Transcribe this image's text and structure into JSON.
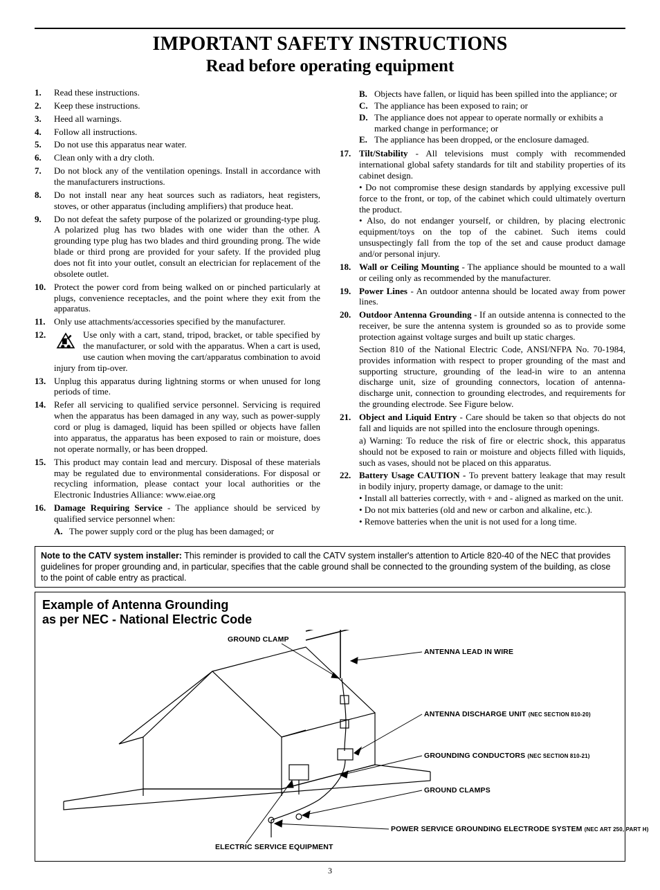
{
  "title_line1": "IMPORTANT SAFETY INSTRUCTIONS",
  "title_line2": "Read before operating equipment",
  "page_number": "3",
  "left_items": [
    {
      "t": "Read these instructions."
    },
    {
      "t": "Keep these instructions."
    },
    {
      "t": "Heed all warnings."
    },
    {
      "t": "Follow all instructions."
    },
    {
      "t": "Do not use this apparatus near water."
    },
    {
      "t": "Clean only with a dry cloth."
    },
    {
      "t": "Do not block any of the ventilation openings. Install in accordance with the manufacturers instructions."
    },
    {
      "t": "Do not install near any heat sources such as radiators, heat registers, stoves, or other apparatus (including amplifiers) that produce heat."
    },
    {
      "t": "Do not defeat the safety purpose of the polarized or grounding-type plug. A polarized plug has two blades with one wider than the other. A grounding type plug has two blades and third grounding prong. The wide blade or third prong are provided for your safety. If the provided plug does not fit into your outlet, consult an electrician for replacement of the obsolete outlet."
    },
    {
      "t": "Protect the power cord from being walked on or pinched particularly at plugs, convenience receptacles, and the point where they exit from the apparatus."
    },
    {
      "t": "Only use attachments/accessories specified by the manufacturer."
    },
    {
      "icon": true,
      "t": "Use only with a cart, stand, tripod, bracket, or table specified by the manufacturer, or sold with the apparatus. When a cart is used, use caution when moving the cart/apparatus combination to avoid injury from tip-over."
    },
    {
      "t": "Unplug this apparatus during lightning storms or when unused for long periods of time."
    },
    {
      "t": "Refer all servicing to qualified service personnel. Servicing is required when the apparatus has been damaged in any way, such as power-supply cord or plug is damaged, liquid has been spilled or objects have fallen into apparatus, the apparatus has been exposed to rain or moisture, does not operate normally, or has been dropped."
    },
    {
      "t": "This product may contain lead and mercury. Disposal of these materials may be regulated due to environmental considerations. For disposal or recycling information, please contact your local authorities or the Electronic Industries Alliance: www.eiae.org"
    },
    {
      "bold_lead": "Damage Requiring Service",
      "t": " - The appliance should be serviced by qualified service personnel when:",
      "sub": [
        {
          "l": "A.",
          "t": "The power supply cord or the plug has been damaged; or"
        }
      ]
    }
  ],
  "right_top_sub": [
    {
      "l": "B.",
      "t": "Objects have fallen, or liquid has been spilled into the appliance; or"
    },
    {
      "l": "C.",
      "t": "The appliance has been exposed to rain; or"
    },
    {
      "l": "D.",
      "t": "The appliance does not appear to operate normally or exhibits a marked change in performance; or"
    },
    {
      "l": "E.",
      "t": "The appliance has been dropped, or the enclosure damaged."
    }
  ],
  "right_items": [
    {
      "bold_lead": "Tilt/Stability",
      "t": " - All televisions must comply with recommended international global safety standards for tilt and stability properties of its cabinet design.",
      "bullets": [
        "• Do not compromise these design standards by applying excessive pull force to the front, or top, of the cabinet which could ultimately overturn the product.",
        "• Also, do not endanger yourself, or children, by placing electronic equipment/toys on the top of the cabinet. Such items could unsuspectingly fall from the top of the set and cause product damage and/or personal injury."
      ]
    },
    {
      "bold_lead": "Wall or Ceiling Mounting",
      "t": " - The appliance should be mounted to a wall or ceiling only as recommended by the manufacturer."
    },
    {
      "bold_lead": "Power Lines",
      "t": " - An outdoor antenna should be located away from power lines."
    },
    {
      "bold_lead": "Outdoor Antenna Grounding",
      "t": " - If an outside antenna is connected to the receiver, be sure the antenna system is grounded so as to provide some protection against voltage surges and built up static charges.",
      "para": "Section 810 of the National Electric Code, ANSI/NFPA No. 70-1984, provides information with respect to proper grounding of the mast and supporting structure, grounding of the lead-in wire to an antenna discharge unit, size of grounding connectors, location of antenna-discharge unit, connection to grounding electrodes, and requirements for the grounding electrode. See Figure below."
    },
    {
      "bold_lead": "Object and Liquid Entry",
      "t": " - Care should be taken so that objects do not fall and liquids are not spilled into the enclosure through openings.",
      "para": "a) Warning: To reduce the risk of fire or electric shock, this apparatus should not be exposed to rain or moisture and objects filled with liquids, such as vases, should not be placed on this apparatus."
    },
    {
      "bold_lead": "Battery Usage CAUTION - ",
      "t": "To prevent battery leakage that may result in bodily injury, property damage, or damage to the unit:",
      "bullets": [
        "• Install all batteries correctly, with + and - aligned as marked on the unit.",
        "• Do not mix batteries (old and new or carbon and alkaline, etc.).",
        "• Remove batteries when the unit is not used for a long time."
      ]
    }
  ],
  "note": {
    "lead": "Note to the CATV system installer:",
    "body": " This reminder is provided to call the CATV system installer's attention to Article 820-40 of the NEC that provides guidelines for proper grounding and, in particular, specifies that the cable ground shall be connected to the grounding system of the building, as close to the point of cable entry as practical."
  },
  "diagram": {
    "title1": "Example of Antenna Grounding",
    "title2": "as per NEC - National Electric Code",
    "labels": {
      "ground_clamp_top": "GROUND CLAMP",
      "antenna_lead": "ANTENNA LEAD IN WIRE",
      "discharge": "ANTENNA DISCHARGE UNIT",
      "discharge_sm": "(NEC SECTION 810-20)",
      "conductors": "GROUNDING CONDUCTORS",
      "conductors_sm": "(NEC SECTION 810-21)",
      "ground_clamps": "GROUND CLAMPS",
      "electrode": "POWER SERVICE GROUNDING ELECTRODE SYSTEM",
      "electrode_sm": "(NEC ART 250, PART H)",
      "electric_service": "ELECTRIC SERVICE EQUIPMENT"
    }
  }
}
